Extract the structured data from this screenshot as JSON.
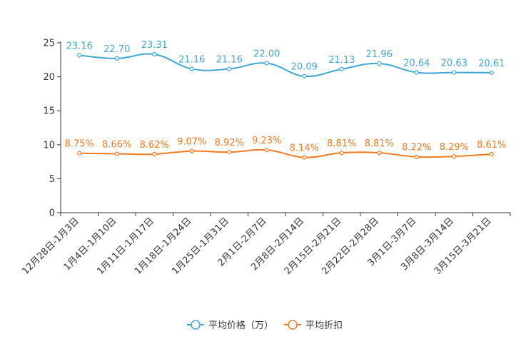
{
  "chart_data": {
    "type": "line",
    "title": "",
    "xlabel": "",
    "ylabel": "",
    "ylim": [
      0,
      25
    ],
    "yticks": [
      0,
      5,
      10,
      15,
      20,
      25
    ],
    "categories": [
      "12月28日-1月3日",
      "1月4日-1月10日",
      "1月11日-1月17日",
      "1月18日-1月24日",
      "1月25日-1月31日",
      "2月1日-2月7日",
      "2月8日-2月14日",
      "2月15日-2月21日",
      "2月22日-2月28日",
      "3月1日-3月7日",
      "3月8日-3月14日",
      "3月15日-3月21日"
    ],
    "series": [
      {
        "name": "平均价格（万）",
        "color": "#3fa7d6",
        "values": [
          23.16,
          22.7,
          23.31,
          21.16,
          21.16,
          22.0,
          20.09,
          21.13,
          21.96,
          20.64,
          20.63,
          20.61
        ],
        "labels": [
          "23.16",
          "22.70",
          "23.31",
          "21.16",
          "21.16",
          "22.00",
          "20.09",
          "21.13",
          "21.96",
          "20.64",
          "20.63",
          "20.61"
        ]
      },
      {
        "name": "平均折扣",
        "color": "#f47a20",
        "values": [
          8.75,
          8.66,
          8.62,
          9.07,
          8.92,
          9.23,
          8.14,
          8.81,
          8.81,
          8.22,
          8.29,
          8.61
        ],
        "labels": [
          "8.75%",
          "8.66%",
          "8.62%",
          "9.07%",
          "8.92%",
          "9.23%",
          "8.14%",
          "8.81%",
          "8.81%",
          "8.22%",
          "8.29%",
          "8.61%"
        ]
      }
    ],
    "legend": "bottom-center"
  }
}
